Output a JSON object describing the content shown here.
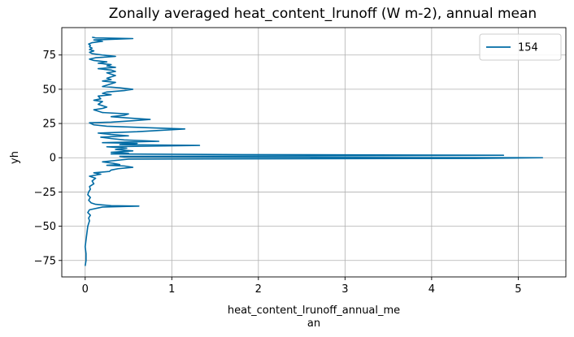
{
  "chart_data": {
    "type": "line",
    "title": "Zonally averaged heat_content_lrunoff (W m-2), annual mean",
    "xlabel_lines": [
      "heat_content_lrunoff_annual_me",
      "an"
    ],
    "ylabel": "yh",
    "xlim": [
      -0.27,
      5.55
    ],
    "ylim": [
      -87,
      95
    ],
    "xticks": [
      0,
      1,
      2,
      3,
      4,
      5
    ],
    "yticks": [
      -75,
      -50,
      -25,
      0,
      25,
      50,
      75
    ],
    "grid": true,
    "legend_position": "top-right",
    "line_color": "#006ba4",
    "series": [
      {
        "name": "154",
        "points": [
          [
            0.0,
            -79
          ],
          [
            0.01,
            -75
          ],
          [
            0.01,
            -70
          ],
          [
            0.0,
            -65
          ],
          [
            0.01,
            -60
          ],
          [
            0.02,
            -55
          ],
          [
            0.03,
            -50
          ],
          [
            0.05,
            -46
          ],
          [
            0.04,
            -44
          ],
          [
            0.06,
            -42
          ],
          [
            0.03,
            -40
          ],
          [
            0.05,
            -38
          ],
          [
            0.2,
            -36
          ],
          [
            0.62,
            -35.3
          ],
          [
            0.3,
            -35
          ],
          [
            0.12,
            -34
          ],
          [
            0.07,
            -33
          ],
          [
            0.04,
            -31
          ],
          [
            0.06,
            -29
          ],
          [
            0.03,
            -27
          ],
          [
            0.04,
            -25
          ],
          [
            0.06,
            -23
          ],
          [
            0.05,
            -21
          ],
          [
            0.1,
            -19
          ],
          [
            0.08,
            -17
          ],
          [
            0.12,
            -15
          ],
          [
            0.05,
            -13.5
          ],
          [
            0.18,
            -12
          ],
          [
            0.1,
            -11
          ],
          [
            0.28,
            -10
          ],
          [
            0.3,
            -9
          ],
          [
            0.38,
            -8
          ],
          [
            0.55,
            -7
          ],
          [
            0.45,
            -6
          ],
          [
            0.25,
            -5.5
          ],
          [
            0.4,
            -5
          ],
          [
            0.32,
            -4
          ],
          [
            0.2,
            -3
          ],
          [
            0.35,
            -2
          ],
          [
            0.5,
            -1
          ],
          [
            4.5,
            -0.5
          ],
          [
            5.28,
            0
          ],
          [
            2.0,
            0.3
          ],
          [
            0.45,
            0.6
          ],
          [
            0.4,
            1
          ],
          [
            4.83,
            1.8
          ],
          [
            1.8,
            2.3
          ],
          [
            0.3,
            2.8
          ],
          [
            0.5,
            3.3
          ],
          [
            0.3,
            4
          ],
          [
            0.55,
            5
          ],
          [
            0.35,
            6
          ],
          [
            0.48,
            7
          ],
          [
            0.25,
            8
          ],
          [
            1.32,
            9
          ],
          [
            0.4,
            9.5
          ],
          [
            0.6,
            10.5
          ],
          [
            0.2,
            11
          ],
          [
            0.85,
            12
          ],
          [
            0.45,
            13
          ],
          [
            0.3,
            14
          ],
          [
            0.18,
            15
          ],
          [
            0.5,
            16
          ],
          [
            0.3,
            17
          ],
          [
            0.15,
            18
          ],
          [
            0.6,
            19
          ],
          [
            1.15,
            21
          ],
          [
            0.7,
            22
          ],
          [
            0.25,
            23
          ],
          [
            0.1,
            24
          ],
          [
            0.05,
            25.5
          ],
          [
            0.3,
            26
          ],
          [
            0.55,
            27
          ],
          [
            0.75,
            28
          ],
          [
            0.5,
            29
          ],
          [
            0.3,
            30
          ],
          [
            0.45,
            31
          ],
          [
            0.5,
            32
          ],
          [
            0.2,
            33
          ],
          [
            0.15,
            34
          ],
          [
            0.1,
            35
          ],
          [
            0.2,
            36
          ],
          [
            0.25,
            37
          ],
          [
            0.15,
            39
          ],
          [
            0.2,
            41
          ],
          [
            0.1,
            42
          ],
          [
            0.18,
            43
          ],
          [
            0.15,
            45
          ],
          [
            0.3,
            46
          ],
          [
            0.2,
            47
          ],
          [
            0.25,
            48
          ],
          [
            0.45,
            49
          ],
          [
            0.55,
            50
          ],
          [
            0.4,
            51
          ],
          [
            0.2,
            52
          ],
          [
            0.25,
            53
          ],
          [
            0.35,
            55
          ],
          [
            0.2,
            56
          ],
          [
            0.3,
            57
          ],
          [
            0.25,
            58
          ],
          [
            0.35,
            60
          ],
          [
            0.3,
            61
          ],
          [
            0.25,
            62
          ],
          [
            0.35,
            63
          ],
          [
            0.3,
            64
          ],
          [
            0.15,
            65
          ],
          [
            0.35,
            66
          ],
          [
            0.25,
            67
          ],
          [
            0.3,
            68
          ],
          [
            0.15,
            69
          ],
          [
            0.25,
            70
          ],
          [
            0.1,
            71
          ],
          [
            0.05,
            72
          ],
          [
            0.12,
            73
          ],
          [
            0.35,
            74
          ],
          [
            0.2,
            75
          ],
          [
            0.08,
            76
          ],
          [
            0.05,
            77
          ],
          [
            0.1,
            78
          ],
          [
            0.05,
            79
          ],
          [
            0.08,
            80
          ],
          [
            0.05,
            81
          ],
          [
            0.06,
            82
          ],
          [
            0.04,
            83
          ],
          [
            0.08,
            84
          ],
          [
            0.2,
            85
          ],
          [
            0.1,
            86
          ],
          [
            0.55,
            87
          ],
          [
            0.12,
            87.5
          ],
          [
            0.08,
            88
          ]
        ]
      }
    ]
  }
}
